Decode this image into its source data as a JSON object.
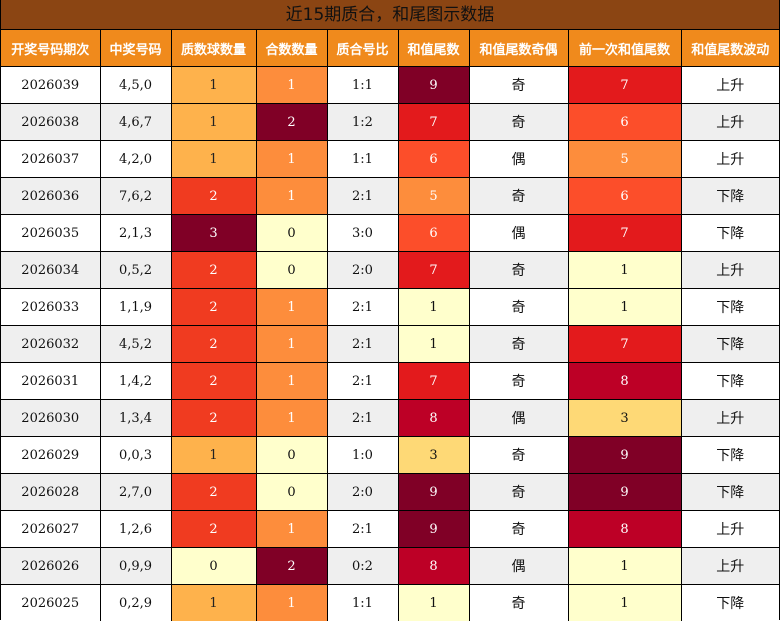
{
  "title": "近15期质合，和尾图示数据",
  "headers": [
    "开奖号码期次",
    "中奖号码",
    "质数球数量",
    "合数数量",
    "质合号比",
    "和值尾数",
    "和值尾数奇偶",
    "前一次和值尾数",
    "和值尾数波动"
  ],
  "colors": {
    "title_bg": "#8b4513",
    "header_bg": "#f08a1c",
    "row_alt": "#efefef",
    "heat": {
      "0": "#ffffcc",
      "1": "#ffffcc",
      "2": "#fd8d3c",
      "3": "#fed976",
      "5": "#fd8d3c",
      "6": "#fc4e2a",
      "7": "#e31a1c",
      "8": "#bd0026",
      "9": "#800026"
    }
  },
  "rows": [
    {
      "issue": "2026039",
      "numbers": "4,5,0",
      "prime": "1",
      "composite": "1",
      "ratio": "1:1",
      "tail": "9",
      "parity": "奇",
      "prev_tail": "7",
      "trend": "上升",
      "prime_color": "#feb24c",
      "composite_color": "#fd8d3c",
      "tail_color": "#800026",
      "prev_color": "#e31a1c"
    },
    {
      "issue": "2026038",
      "numbers": "4,6,7",
      "prime": "1",
      "composite": "2",
      "ratio": "1:2",
      "tail": "7",
      "parity": "奇",
      "prev_tail": "6",
      "trend": "上升",
      "prime_color": "#feb24c",
      "composite_color": "#800026",
      "tail_color": "#e31a1c",
      "prev_color": "#fc4e2a"
    },
    {
      "issue": "2026037",
      "numbers": "4,2,0",
      "prime": "1",
      "composite": "1",
      "ratio": "1:1",
      "tail": "6",
      "parity": "偶",
      "prev_tail": "5",
      "trend": "上升",
      "prime_color": "#feb24c",
      "composite_color": "#fd8d3c",
      "tail_color": "#fc4e2a",
      "prev_color": "#fd8d3c"
    },
    {
      "issue": "2026036",
      "numbers": "7,6,2",
      "prime": "2",
      "composite": "1",
      "ratio": "2:1",
      "tail": "5",
      "parity": "奇",
      "prev_tail": "6",
      "trend": "下降",
      "prime_color": "#f03b20",
      "composite_color": "#fd8d3c",
      "tail_color": "#fd8d3c",
      "prev_color": "#fc4e2a"
    },
    {
      "issue": "2026035",
      "numbers": "2,1,3",
      "prime": "3",
      "composite": "0",
      "ratio": "3:0",
      "tail": "6",
      "parity": "偶",
      "prev_tail": "7",
      "trend": "下降",
      "prime_color": "#800026",
      "composite_color": "#ffffcc",
      "tail_color": "#fc4e2a",
      "prev_color": "#e31a1c"
    },
    {
      "issue": "2026034",
      "numbers": "0,5,2",
      "prime": "2",
      "composite": "0",
      "ratio": "2:0",
      "tail": "7",
      "parity": "奇",
      "prev_tail": "1",
      "trend": "上升",
      "prime_color": "#f03b20",
      "composite_color": "#ffffcc",
      "tail_color": "#e31a1c",
      "prev_color": "#ffffcc"
    },
    {
      "issue": "2026033",
      "numbers": "1,1,9",
      "prime": "2",
      "composite": "1",
      "ratio": "2:1",
      "tail": "1",
      "parity": "奇",
      "prev_tail": "1",
      "trend": "下降",
      "prime_color": "#f03b20",
      "composite_color": "#fd8d3c",
      "tail_color": "#ffffcc",
      "prev_color": "#ffffcc"
    },
    {
      "issue": "2026032",
      "numbers": "4,5,2",
      "prime": "2",
      "composite": "1",
      "ratio": "2:1",
      "tail": "1",
      "parity": "奇",
      "prev_tail": "7",
      "trend": "下降",
      "prime_color": "#f03b20",
      "composite_color": "#fd8d3c",
      "tail_color": "#ffffcc",
      "prev_color": "#e31a1c"
    },
    {
      "issue": "2026031",
      "numbers": "1,4,2",
      "prime": "2",
      "composite": "1",
      "ratio": "2:1",
      "tail": "7",
      "parity": "奇",
      "prev_tail": "8",
      "trend": "下降",
      "prime_color": "#f03b20",
      "composite_color": "#fd8d3c",
      "tail_color": "#e31a1c",
      "prev_color": "#bd0026"
    },
    {
      "issue": "2026030",
      "numbers": "1,3,4",
      "prime": "2",
      "composite": "1",
      "ratio": "2:1",
      "tail": "8",
      "parity": "偶",
      "prev_tail": "3",
      "trend": "上升",
      "prime_color": "#f03b20",
      "composite_color": "#fd8d3c",
      "tail_color": "#bd0026",
      "prev_color": "#fed976"
    },
    {
      "issue": "2026029",
      "numbers": "0,0,3",
      "prime": "1",
      "composite": "0",
      "ratio": "1:0",
      "tail": "3",
      "parity": "奇",
      "prev_tail": "9",
      "trend": "下降",
      "prime_color": "#feb24c",
      "composite_color": "#ffffcc",
      "tail_color": "#fed976",
      "prev_color": "#800026"
    },
    {
      "issue": "2026028",
      "numbers": "2,7,0",
      "prime": "2",
      "composite": "0",
      "ratio": "2:0",
      "tail": "9",
      "parity": "奇",
      "prev_tail": "9",
      "trend": "下降",
      "prime_color": "#f03b20",
      "composite_color": "#ffffcc",
      "tail_color": "#800026",
      "prev_color": "#800026"
    },
    {
      "issue": "2026027",
      "numbers": "1,2,6",
      "prime": "2",
      "composite": "1",
      "ratio": "2:1",
      "tail": "9",
      "parity": "奇",
      "prev_tail": "8",
      "trend": "上升",
      "prime_color": "#f03b20",
      "composite_color": "#fd8d3c",
      "tail_color": "#800026",
      "prev_color": "#bd0026"
    },
    {
      "issue": "2026026",
      "numbers": "0,9,9",
      "prime": "0",
      "composite": "2",
      "ratio": "0:2",
      "tail": "8",
      "parity": "偶",
      "prev_tail": "1",
      "trend": "上升",
      "prime_color": "#ffffcc",
      "composite_color": "#800026",
      "tail_color": "#bd0026",
      "prev_color": "#ffffcc"
    },
    {
      "issue": "2026025",
      "numbers": "0,2,9",
      "prime": "1",
      "composite": "1",
      "ratio": "1:1",
      "tail": "1",
      "parity": "奇",
      "prev_tail": "1",
      "trend": "下降",
      "prime_color": "#feb24c",
      "composite_color": "#fd8d3c",
      "tail_color": "#ffffcc",
      "prev_color": "#ffffcc"
    }
  ]
}
